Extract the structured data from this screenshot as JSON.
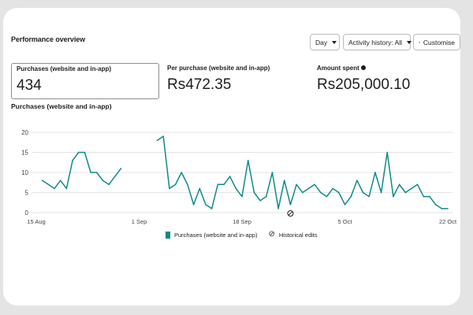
{
  "header": {
    "title": "Performance overview",
    "day_label": "Day",
    "activity_label": "Activity history: All",
    "customise_label": "Customise"
  },
  "metrics": [
    {
      "label": "Purchases (website and in-app)",
      "value": "434"
    },
    {
      "label": "Per purchase (website and in-app)",
      "value": "Rs472.35"
    },
    {
      "label": "Amount spent",
      "value": "Rs205,000.10"
    }
  ],
  "chart_title": "Purchases (website and in-app)",
  "legend": {
    "series_label": "Purchases (website and in-app)",
    "edits_label": "Historical edits",
    "edits_icon": "⊘"
  },
  "colors": {
    "series": "#0f8a8a",
    "grid": "#e3e3e3",
    "axis_text": "#444444"
  },
  "chart_data": {
    "type": "line",
    "title": "Purchases (website and in-app)",
    "xlabel": "",
    "ylabel": "",
    "ylim": [
      0,
      20
    ],
    "yticks": [
      0,
      5,
      10,
      15,
      20
    ],
    "grid": true,
    "legend_position": "bottom",
    "x_ticks": [
      {
        "label": "15 Aug",
        "date": "2023-08-15"
      },
      {
        "label": "1 Sep",
        "date": "2023-09-01"
      },
      {
        "label": "18 Sep",
        "date": "2023-09-18"
      },
      {
        "label": "5 Oct",
        "date": "2023-10-05"
      },
      {
        "label": "22 Oct",
        "date": "2023-10-22"
      }
    ],
    "series": [
      {
        "name": "Purchases (website and in-app)",
        "points": [
          [
            "2023-08-16",
            8
          ],
          [
            "2023-08-17",
            7
          ],
          [
            "2023-08-18",
            6
          ],
          [
            "2023-08-19",
            8
          ],
          [
            "2023-08-20",
            6
          ],
          [
            "2023-08-21",
            13
          ],
          [
            "2023-08-22",
            15
          ],
          [
            "2023-08-23",
            15
          ],
          [
            "2023-08-24",
            10
          ],
          [
            "2023-08-25",
            10
          ],
          [
            "2023-08-26",
            8
          ],
          [
            "2023-08-27",
            7
          ],
          [
            "2023-08-28",
            9
          ],
          [
            "2023-08-29",
            11
          ],
          null,
          [
            "2023-09-04",
            18
          ],
          [
            "2023-09-05",
            19
          ],
          [
            "2023-09-06",
            6
          ],
          [
            "2023-09-07",
            7
          ],
          [
            "2023-09-08",
            10
          ],
          [
            "2023-09-09",
            7
          ],
          [
            "2023-09-10",
            2
          ],
          [
            "2023-09-11",
            6
          ],
          [
            "2023-09-12",
            2
          ],
          [
            "2023-09-13",
            1
          ],
          [
            "2023-09-14",
            7
          ],
          [
            "2023-09-15",
            7
          ],
          [
            "2023-09-16",
            9
          ],
          [
            "2023-09-17",
            6
          ],
          [
            "2023-09-18",
            4
          ],
          [
            "2023-09-19",
            13
          ],
          [
            "2023-09-20",
            5
          ],
          [
            "2023-09-21",
            3
          ],
          [
            "2023-09-22",
            4
          ],
          [
            "2023-09-23",
            10
          ],
          [
            "2023-09-24",
            1
          ],
          [
            "2023-09-25",
            8
          ],
          [
            "2023-09-26",
            2
          ],
          [
            "2023-09-27",
            7
          ],
          [
            "2023-09-28",
            5
          ],
          [
            "2023-09-29",
            6
          ],
          [
            "2023-09-30",
            7
          ],
          [
            "2023-10-01",
            5
          ],
          [
            "2023-10-02",
            4
          ],
          [
            "2023-10-03",
            6
          ],
          [
            "2023-10-04",
            5
          ],
          [
            "2023-10-05",
            2
          ],
          [
            "2023-10-06",
            4
          ],
          [
            "2023-10-07",
            8
          ],
          [
            "2023-10-08",
            5
          ],
          [
            "2023-10-09",
            4
          ],
          [
            "2023-10-10",
            10
          ],
          [
            "2023-10-11",
            5
          ],
          [
            "2023-10-12",
            15
          ],
          [
            "2023-10-13",
            4
          ],
          [
            "2023-10-14",
            7
          ],
          [
            "2023-10-15",
            5
          ],
          [
            "2023-10-16",
            6
          ],
          [
            "2023-10-17",
            7
          ],
          [
            "2023-10-18",
            4
          ],
          [
            "2023-10-19",
            4
          ],
          [
            "2023-10-20",
            2
          ],
          [
            "2023-10-21",
            1
          ],
          [
            "2023-10-22",
            1
          ]
        ]
      }
    ],
    "historical_edit_markers": [
      "2023-09-26"
    ]
  }
}
